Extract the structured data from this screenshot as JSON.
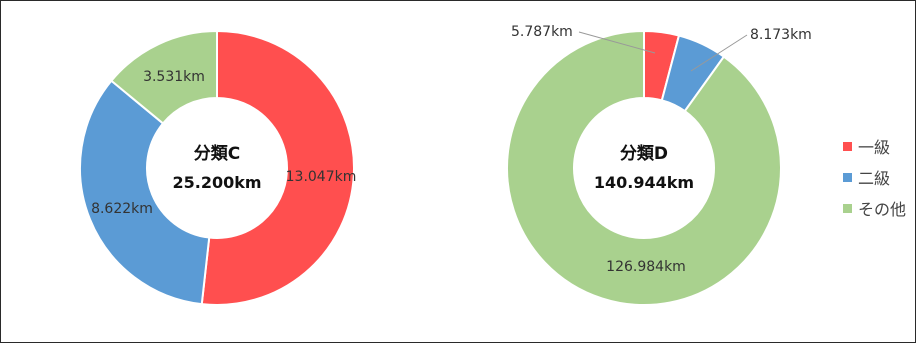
{
  "chart_data": [
    {
      "type": "pie",
      "title": "分類C",
      "total": "25.200km",
      "categories": [
        "一級",
        "二級",
        "その他"
      ],
      "values": [
        13.047,
        8.622,
        3.531
      ],
      "labels": [
        "13.047km",
        "8.622km",
        "3.531km"
      ],
      "colors": [
        "#ff4f4f",
        "#5b9bd5",
        "#a9d18e"
      ],
      "donut": true
    },
    {
      "type": "pie",
      "title": "分類D",
      "total": "140.944km",
      "categories": [
        "一級",
        "二級",
        "その他"
      ],
      "values": [
        5.787,
        8.173,
        126.984
      ],
      "labels": [
        "5.787km",
        "8.173km",
        "126.984km"
      ],
      "colors": [
        "#ff4f4f",
        "#5b9bd5",
        "#a9d18e"
      ],
      "donut": true
    }
  ],
  "legend": {
    "placement": "right",
    "items": [
      {
        "label": "一級",
        "color": "#ff4f4f"
      },
      {
        "label": "二級",
        "color": "#5b9bd5"
      },
      {
        "label": "その他",
        "color": "#a9d18e"
      }
    ]
  }
}
